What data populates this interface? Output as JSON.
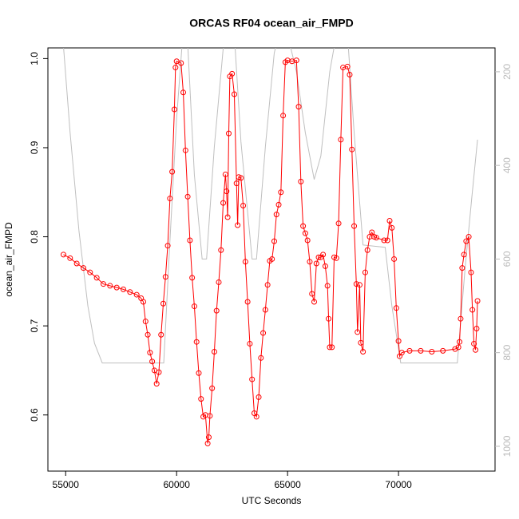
{
  "chart_data": {
    "type": "line",
    "title": "ORCAS RF04 ocean_air_FMPD",
    "xlabel": "UTC Seconds",
    "ylabel": "ocean_air_FMPD",
    "xlim": [
      54200,
      74350
    ],
    "xticks": [
      55000,
      60000,
      65000,
      70000
    ],
    "ylim": [
      0.537,
      1.012
    ],
    "yticks": [
      0.6,
      0.7,
      0.8,
      0.9,
      {
        "value": 1,
        "label": "1.0"
      }
    ],
    "y2lim": [
      1053,
      149
    ],
    "y2ticks": [
      200,
      400,
      600,
      800,
      1000
    ],
    "series": [
      {
        "color": "#ff0000",
        "markers": true,
        "x": [
          54900,
          55200,
          55500,
          55800,
          56100,
          56400,
          56700,
          57000,
          57300,
          57600,
          57900,
          58200,
          58400,
          58500,
          58600,
          58700,
          58800,
          58900,
          59000,
          59100,
          59200,
          59300,
          59400,
          59500,
          59600,
          59700,
          59800,
          59900,
          59950,
          60000,
          60200,
          60300,
          60400,
          60500,
          60600,
          60700,
          60800,
          60900,
          61000,
          61100,
          61200,
          61300,
          61400,
          61450,
          61500,
          61600,
          61700,
          61800,
          61900,
          62000,
          62100,
          62200,
          62250,
          62300,
          62350,
          62400,
          62500,
          62600,
          62700,
          62750,
          62800,
          62900,
          63000,
          63100,
          63200,
          63300,
          63400,
          63500,
          63600,
          63700,
          63800,
          63900,
          64000,
          64100,
          64200,
          64300,
          64400,
          64500,
          64600,
          64700,
          64800,
          64900,
          65000,
          65200,
          65400,
          65500,
          65600,
          65700,
          65800,
          65900,
          66000,
          66100,
          66200,
          66300,
          66400,
          66500,
          66600,
          66700,
          66800,
          66850,
          66900,
          67000,
          67100,
          67200,
          67300,
          67400,
          67500,
          67700,
          67800,
          67900,
          68000,
          68100,
          68150,
          68250,
          68300,
          68400,
          68500,
          68600,
          68700,
          68800,
          68900,
          69000,
          69350,
          69500,
          69600,
          69700,
          69800,
          69900,
          70000,
          70050,
          70150,
          70500,
          71000,
          71500,
          72000,
          72550,
          72700,
          72750,
          72800,
          72870,
          72950,
          73050,
          73165,
          73270,
          73330,
          73400,
          73470,
          73520,
          73560
        ],
        "values": [
          0.78,
          0.776,
          0.77,
          0.765,
          0.76,
          0.754,
          0.747,
          0.745,
          0.743,
          0.741,
          0.738,
          0.735,
          0.731,
          0.727,
          0.705,
          0.69,
          0.67,
          0.66,
          0.65,
          0.635,
          0.648,
          0.69,
          0.725,
          0.755,
          0.79,
          0.843,
          0.873,
          0.943,
          0.99,
          0.997,
          0.995,
          0.962,
          0.897,
          0.845,
          0.796,
          0.754,
          0.722,
          0.682,
          0.647,
          0.618,
          0.598,
          0.6,
          0.568,
          0.575,
          0.599,
          0.63,
          0.671,
          0.717,
          0.749,
          0.785,
          0.838,
          0.87,
          0.851,
          0.822,
          0.916,
          0.98,
          0.983,
          0.96,
          0.86,
          0.813,
          0.867,
          0.866,
          0.835,
          0.772,
          0.727,
          0.68,
          0.64,
          0.602,
          0.598,
          0.62,
          0.664,
          0.692,
          0.718,
          0.746,
          0.773,
          0.775,
          0.795,
          0.825,
          0.836,
          0.85,
          0.936,
          0.996,
          0.998,
          0.997,
          0.998,
          0.946,
          0.862,
          0.812,
          0.804,
          0.796,
          0.772,
          0.736,
          0.727,
          0.77,
          0.777,
          0.777,
          0.78,
          0.767,
          0.745,
          0.708,
          0.676,
          0.676,
          0.777,
          0.776,
          0.815,
          0.909,
          0.99,
          0.991,
          0.982,
          0.898,
          0.812,
          0.747,
          0.693,
          0.746,
          0.681,
          0.671,
          0.76,
          0.785,
          0.8,
          0.805,
          0.8,
          0.799,
          0.796,
          0.796,
          0.818,
          0.81,
          0.775,
          0.72,
          0.683,
          0.666,
          0.67,
          0.672,
          0.672,
          0.671,
          0.672,
          0.674,
          0.676,
          0.682,
          0.708,
          0.765,
          0.78,
          0.795,
          0.8,
          0.76,
          0.718,
          0.68,
          0.673,
          0.697,
          0.728
        ]
      },
      {
        "color": "#bfbfbf",
        "axis": "y2",
        "markers": false,
        "x": [
          54860,
          55200,
          55600,
          56000,
          56300,
          56650,
          59420,
          59700,
          60000,
          60250,
          60500,
          60800,
          61150,
          61350,
          61700,
          62100,
          62300,
          62600,
          62900,
          63400,
          63600,
          64000,
          64400,
          64600,
          65000,
          65400,
          65800,
          66200,
          66500,
          66900,
          67200,
          67700,
          68000,
          68400,
          69400,
          69700,
          70100,
          72650,
          73000,
          73300,
          73560
        ],
        "values": [
          120,
          330,
          540,
          700,
          780,
          822,
          822,
          560,
          300,
          140,
          140,
          420,
          600,
          600,
          360,
          150,
          120,
          120,
          350,
          600,
          600,
          360,
          160,
          120,
          120,
          200,
          330,
          430,
          380,
          200,
          120,
          120,
          330,
          570,
          575,
          700,
          822,
          822,
          620,
          470,
          345
        ]
      }
    ]
  }
}
